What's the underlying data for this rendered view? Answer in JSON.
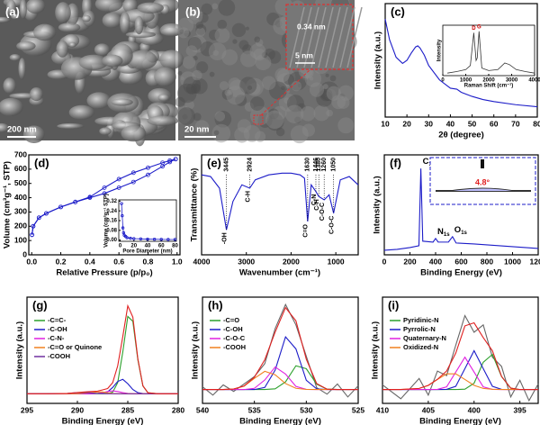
{
  "images": [
    {
      "panel": "(a)",
      "scale_bar": "200 nm"
    },
    {
      "panel": "(b)",
      "scale_bar": "20 nm",
      "inset_spacing": "0.34 nm",
      "inset_scale_bar": "5 nm"
    }
  ],
  "chart_data": [
    {
      "type": "line",
      "panel": "(c)",
      "xlabel": "2θ (degree)",
      "ylabel": "Intensity (a.u.)",
      "xlim": [
        10,
        80
      ],
      "xticks": [
        10,
        20,
        30,
        40,
        50,
        60,
        70,
        80
      ],
      "ylim": [
        0,
        110
      ],
      "x": [
        10,
        12,
        15,
        18,
        20,
        22,
        24,
        25,
        26,
        28,
        30,
        35,
        40,
        43,
        45,
        50,
        55,
        60,
        70,
        80
      ],
      "series": [
        {
          "color": "#1c1cc8",
          "values": [
            95,
            75,
            58,
            52,
            55,
            62,
            68,
            69,
            67,
            60,
            50,
            36,
            28,
            27,
            24,
            20,
            17,
            15,
            12,
            10
          ]
        }
      ],
      "inset": {
        "type": "line",
        "xlabel": "Raman Shift (cm⁻¹)",
        "ylabel": "Intensity",
        "xlim": [
          0,
          4000
        ],
        "xticks": [
          0,
          1000,
          2000,
          3000,
          4000
        ],
        "ylim": [
          0,
          100
        ],
        "x": [
          200,
          600,
          1000,
          1200,
          1350,
          1450,
          1500,
          1580,
          1700,
          2000,
          2400,
          2700,
          2900,
          3200,
          3600,
          4000
        ],
        "series": [
          {
            "color": "#333333",
            "values": [
              5,
              8,
              12,
              20,
              85,
              30,
              35,
              88,
              15,
              10,
              12,
              25,
              22,
              12,
              8,
              5
            ]
          }
        ],
        "annotations": [
          {
            "x": 1350,
            "text": "D"
          },
          {
            "x": 1580,
            "text": "G"
          }
        ]
      }
    },
    {
      "type": "line",
      "panel": "(d)",
      "xlabel": "Relative Pressure (p/p₀)",
      "ylabel": "Volume (cm³g⁻¹, STP)",
      "xlim": [
        -0.02,
        1.02
      ],
      "xticks": [
        {
          "value": 0,
          "label": "0.0"
        },
        0.2,
        0.4,
        0.6,
        0.8,
        {
          "value": 1,
          "label": "1.0"
        }
      ],
      "ylim": [
        0,
        700
      ],
      "yticks": [
        0,
        100,
        200,
        300,
        400,
        500,
        600,
        700
      ],
      "markers": true,
      "x": [
        0.002,
        0.01,
        0.05,
        0.1,
        0.2,
        0.3,
        0.4,
        0.5,
        0.6,
        0.7,
        0.8,
        0.9,
        0.95,
        0.99
      ],
      "series": [
        {
          "color": "#1c1cc8",
          "values": [
            140,
            200,
            260,
            290,
            335,
            370,
            400,
            430,
            470,
            510,
            560,
            620,
            650,
            670
          ]
        },
        {
          "color": "#1c1cc8",
          "values": [
            140,
            200,
            260,
            290,
            335,
            370,
            405,
            470,
            530,
            575,
            610,
            645,
            660,
            670
          ]
        }
      ],
      "inset": {
        "type": "line",
        "xlabel": "Pore Diameter (nm)",
        "ylabel": "Volume (cm³g⁻¹ STP)",
        "xlim": [
          -2,
          82
        ],
        "xticks": [
          0,
          20,
          40,
          60,
          80
        ],
        "ylim": [
          -0.01,
          0.33
        ],
        "yticks": [
          {
            "value": 0,
            "label": "0.00"
          },
          0.08,
          0.16,
          0.24,
          0.32
        ],
        "markers": true,
        "x": [
          2,
          3,
          4,
          5,
          6,
          8,
          10,
          15,
          20,
          30,
          40,
          50,
          60,
          70,
          80
        ],
        "series": [
          {
            "color": "#1c1cc8",
            "values": [
              0.3,
              0.2,
              0.1,
              0.06,
              0.04,
              0.03,
              0.02,
              0.015,
              0.012,
              0.01,
              0.008,
              0.007,
              0.006,
              0.005,
              0.005
            ]
          }
        ]
      }
    },
    {
      "type": "line",
      "panel": "(e)",
      "xlabel": "Wavenumber (cm⁻¹)",
      "ylabel": "Transmittance (%)",
      "xlim": [
        4000,
        500
      ],
      "xticks": [
        4000,
        3000,
        2000,
        1000
      ],
      "ylim": [
        40,
        100
      ],
      "x": [
        4000,
        3800,
        3600,
        3445,
        3300,
        3100,
        2924,
        2800,
        2500,
        2200,
        2000,
        1800,
        1700,
        1630,
        1550,
        1446,
        1380,
        1260,
        1150,
        1050,
        900,
        700,
        500
      ],
      "series": [
        {
          "color": "#1c1cc8",
          "values": [
            88,
            87,
            80,
            55,
            72,
            82,
            80,
            85,
            88,
            89,
            89,
            88,
            86,
            60,
            82,
            78,
            75,
            73,
            76,
            65,
            85,
            87,
            82
          ]
        }
      ],
      "bands": [
        {
          "x": 3445,
          "bond": "-OH"
        },
        {
          "x": 2924,
          "bond": "C-H"
        },
        {
          "x": 1630,
          "bond": "C=O"
        },
        {
          "x": 1446,
          "bond": "C-N"
        },
        {
          "x": 1380,
          "bond": "C-H"
        },
        {
          "x": 1260,
          "bond": "C-O-C"
        },
        {
          "x": 1050,
          "bond": "C-O-C"
        }
      ]
    },
    {
      "type": "line",
      "panel": "(f)",
      "xlabel": "Binding Energy (eV)",
      "ylabel": "Intensity (a.u.)",
      "xlim": [
        0,
        1200
      ],
      "xticks": [
        0,
        200,
        400,
        600,
        800,
        1000,
        1200
      ],
      "ylim": [
        0,
        110
      ],
      "x": [
        0,
        100,
        200,
        270,
        285,
        300,
        380,
        400,
        420,
        500,
        532,
        560,
        700,
        900,
        1000,
        1100,
        1200
      ],
      "series": [
        {
          "color": "#1c1cc8",
          "values": [
            5,
            6,
            8,
            10,
            95,
            15,
            14,
            18,
            14,
            14,
            20,
            13,
            12,
            10,
            9,
            8,
            7
          ]
        }
      ],
      "peak_labels": [
        {
          "x": 285,
          "element": "C",
          "orbital": "1s"
        },
        {
          "x": 400,
          "element": "N",
          "orbital": "1s"
        },
        {
          "x": 532,
          "element": "O",
          "orbital": "1s"
        }
      ],
      "contact_angle": "4.8°"
    },
    {
      "type": "line",
      "panel": "(g)",
      "xlabel": "Binding Energy (eV)",
      "ylabel": "Intensity (a.u.)",
      "xlim": [
        295,
        280
      ],
      "xticks": [
        295,
        290,
        285,
        280
      ],
      "ylim": [
        -10,
        100
      ],
      "legend": "upper left",
      "x": [
        295,
        293,
        291,
        290,
        289,
        288,
        287.5,
        287,
        286.5,
        286,
        285.5,
        285,
        284.5,
        284,
        283.5,
        283,
        282,
        281,
        280
      ],
      "series": [
        {
          "name": "-C=C-",
          "color": "#2ca02c",
          "values": [
            0,
            0,
            0,
            0,
            0,
            0,
            0,
            0.2,
            1.6,
            11.5,
            43,
            80,
            75,
            35,
            8,
            1,
            0,
            0,
            0
          ]
        },
        {
          "name": "-C-OH",
          "color": "#1c1cc8",
          "values": [
            0,
            0,
            0,
            0,
            0,
            0.3,
            1,
            2,
            6.5,
            12.7,
            14.9,
            10.4,
            4.4,
            1.1,
            0.2,
            0,
            0,
            0,
            0
          ]
        },
        {
          "name": "-C-N-",
          "color": "#e020e0",
          "values": [
            0,
            0,
            0,
            0,
            0,
            0.3,
            1.1,
            2.3,
            3,
            2.3,
            1.1,
            0.3,
            0,
            0,
            0,
            0,
            0,
            0,
            0
          ]
        },
        {
          "name": "-C=O or Quinone",
          "color": "#f08020",
          "values": [
            0,
            0,
            0,
            0.1,
            0.9,
            1.8,
            1.8,
            0.9,
            0.3,
            0.1,
            0,
            0,
            0,
            0,
            0,
            0,
            0,
            0,
            0
          ]
        },
        {
          "name": "-COOH",
          "color": "#7030a0",
          "values": [
            0,
            0,
            0.3,
            1.2,
            1.2,
            0.3,
            0.1,
            0,
            0,
            0,
            0,
            0,
            0,
            0,
            0,
            0,
            0,
            0,
            0
          ]
        },
        {
          "color": "#e02020",
          "values": [
            0,
            0,
            0.3,
            1.3,
            2.1,
            2.7,
            4,
            5.4,
            11.4,
            28.9,
            59,
            91,
            79.4,
            36.1,
            8.2,
            1,
            0,
            0,
            0
          ]
        }
      ]
    },
    {
      "type": "line",
      "panel": "(h)",
      "xlabel": "Binding Energy (eV)",
      "ylabel": "Intensity (a.u.)",
      "xlim": [
        540,
        525
      ],
      "xticks": [
        540,
        535,
        530,
        525
      ],
      "ylim": [
        -15,
        100
      ],
      "legend": "upper left",
      "x": [
        540,
        539,
        538,
        537,
        536,
        535,
        534,
        533,
        532,
        531,
        530,
        529,
        528,
        527,
        526,
        525
      ],
      "series": [
        {
          "color": "#666666",
          "values": [
            3,
            -6,
            5,
            -2,
            6,
            14,
            28,
            66,
            92,
            70,
            36,
            2,
            -5,
            6,
            -8,
            4
          ]
        },
        {
          "name": "-C=O",
          "color": "#2ca02c",
          "values": [
            0,
            0,
            0,
            0,
            0,
            0,
            0,
            0.8,
            8.3,
            25.7,
            22.5,
            5.8,
            0.4,
            0,
            0,
            0
          ]
        },
        {
          "name": "-C-OH",
          "color": "#1c1cc8",
          "values": [
            0,
            0,
            0,
            0,
            0,
            0,
            2.3,
            21,
            57,
            44,
            10,
            0.7,
            0,
            0,
            0,
            0
          ]
        },
        {
          "name": "-C-O-C",
          "color": "#e020e0",
          "values": [
            0,
            0,
            0,
            0,
            0,
            1.3,
            10.3,
            24.4,
            16.8,
            3.4,
            0.2,
            0,
            0,
            0,
            0,
            0
          ]
        },
        {
          "name": "-COOH",
          "color": "#f08020",
          "values": [
            0,
            0,
            0,
            0.6,
            3.7,
            12.1,
            19.7,
            16,
            6.5,
            1.3,
            0.1,
            0,
            0,
            0,
            0,
            0
          ]
        },
        {
          "color": "#e02020",
          "values": [
            0,
            0,
            0,
            0.6,
            3.7,
            13.4,
            32.3,
            62.2,
            88.6,
            74.4,
            32.8,
            6.5,
            0.4,
            0,
            0,
            0
          ]
        }
      ]
    },
    {
      "type": "line",
      "panel": "(i)",
      "xlabel": "Binding Energy (eV)",
      "ylabel": "Intensity (a.u.)",
      "xlim": [
        410,
        393
      ],
      "xticks": [
        410,
        405,
        400,
        395
      ],
      "ylim": [
        -15,
        100
      ],
      "legend": "upper left",
      "x": [
        410,
        408,
        406,
        405,
        404,
        403,
        402,
        401,
        400,
        399,
        398,
        397,
        396,
        395,
        394,
        393
      ],
      "series": [
        {
          "color": "#666666",
          "values": [
            5,
            -10,
            12,
            -6,
            20,
            15,
            48,
            80,
            62,
            70,
            35,
            25,
            -8,
            10,
            -12,
            6
          ]
        },
        {
          "name": "Pyridinic-N",
          "color": "#2ca02c",
          "values": [
            0,
            0,
            0,
            0,
            0,
            0,
            0,
            0.4,
            6.8,
            29.5,
            38,
            14,
            1.5,
            0,
            0,
            0
          ]
        },
        {
          "name": "Pyrrolic-N",
          "color": "#1c1cc8",
          "values": [
            0,
            0,
            0,
            0,
            0,
            0.2,
            3.5,
            22.6,
            42,
            22.6,
            3.5,
            0.2,
            0,
            0,
            0,
            0
          ]
        },
        {
          "name": "Quaternary-N",
          "color": "#e020e0",
          "values": [
            0,
            0,
            0,
            0,
            0.2,
            2.9,
            18.9,
            35,
            18.9,
            2.9,
            0.2,
            0,
            0,
            0,
            0,
            0
          ]
        },
        {
          "name": "Oxidized-N",
          "color": "#f08020",
          "values": [
            0,
            0,
            1.2,
            4.5,
            10.9,
            17,
            17,
            10.9,
            4.5,
            1.2,
            0.3,
            0,
            0,
            0,
            0,
            0
          ]
        },
        {
          "color": "#e02020",
          "values": [
            0,
            0,
            1.2,
            4.5,
            11.1,
            20.1,
            39.4,
            68.9,
            72.2,
            56.2,
            42,
            14.2,
            1.5,
            0,
            0,
            0
          ]
        }
      ]
    }
  ]
}
